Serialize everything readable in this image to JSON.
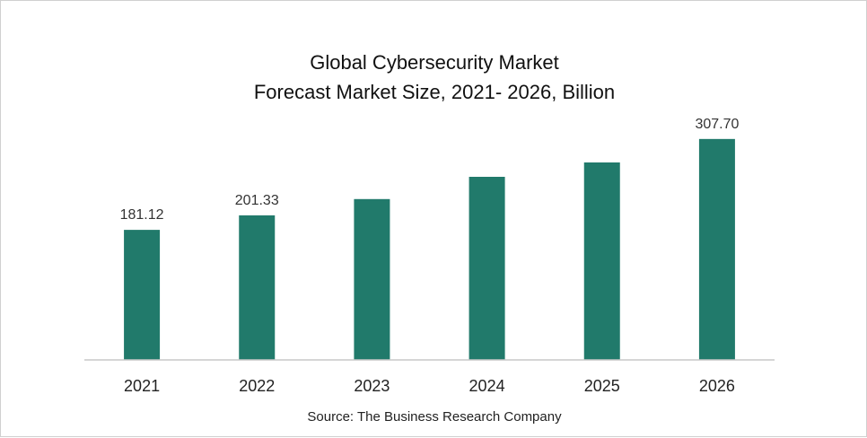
{
  "chart_data": {
    "type": "bar",
    "title": "Global Cybersecurity Market",
    "subtitle": "Forecast Market Size, 2021- 2026, Billion",
    "categories": [
      "2021",
      "2022",
      "2023",
      "2024",
      "2025",
      "2026"
    ],
    "values": [
      181.12,
      201.33,
      224,
      255,
      275,
      307.7
    ],
    "data_labels": [
      "181.12",
      "201.33",
      "",
      "",
      "",
      "307.70"
    ],
    "ylim": [
      0,
      340
    ],
    "grid": false,
    "legend": "none",
    "bar_color": "#217a6b",
    "axis_color": "#c8c8c8",
    "source": "Source: The Business Research Company"
  }
}
